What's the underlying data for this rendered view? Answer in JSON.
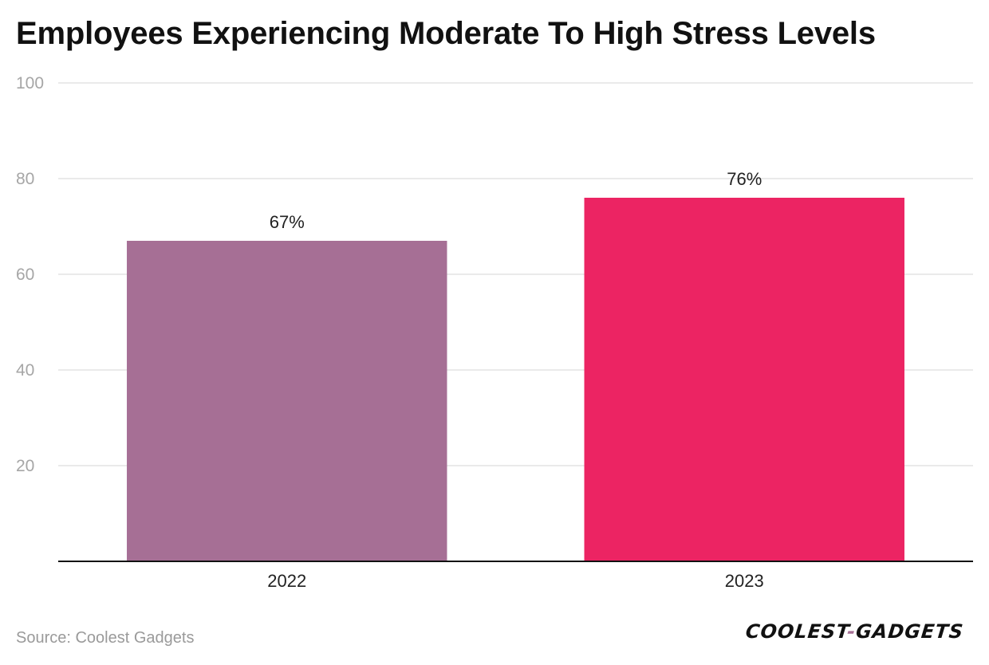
{
  "chart_data": {
    "type": "bar",
    "title": "Employees Experiencing Moderate To High Stress Levels",
    "categories": [
      "2022",
      "2023"
    ],
    "values": [
      67,
      76
    ],
    "data_labels": [
      "67%",
      "76%"
    ],
    "bar_colors": [
      "#a66f95",
      "#ec2463"
    ],
    "ylim": [
      0,
      100
    ],
    "yticks": [
      20,
      40,
      60,
      80,
      100
    ],
    "xlabel": "",
    "ylabel": "",
    "grid": true
  },
  "footer": {
    "source": "Source: Coolest Gadgets",
    "logo_part1": "COOLEST",
    "logo_dash": "-",
    "logo_part2": "GADGETS"
  }
}
